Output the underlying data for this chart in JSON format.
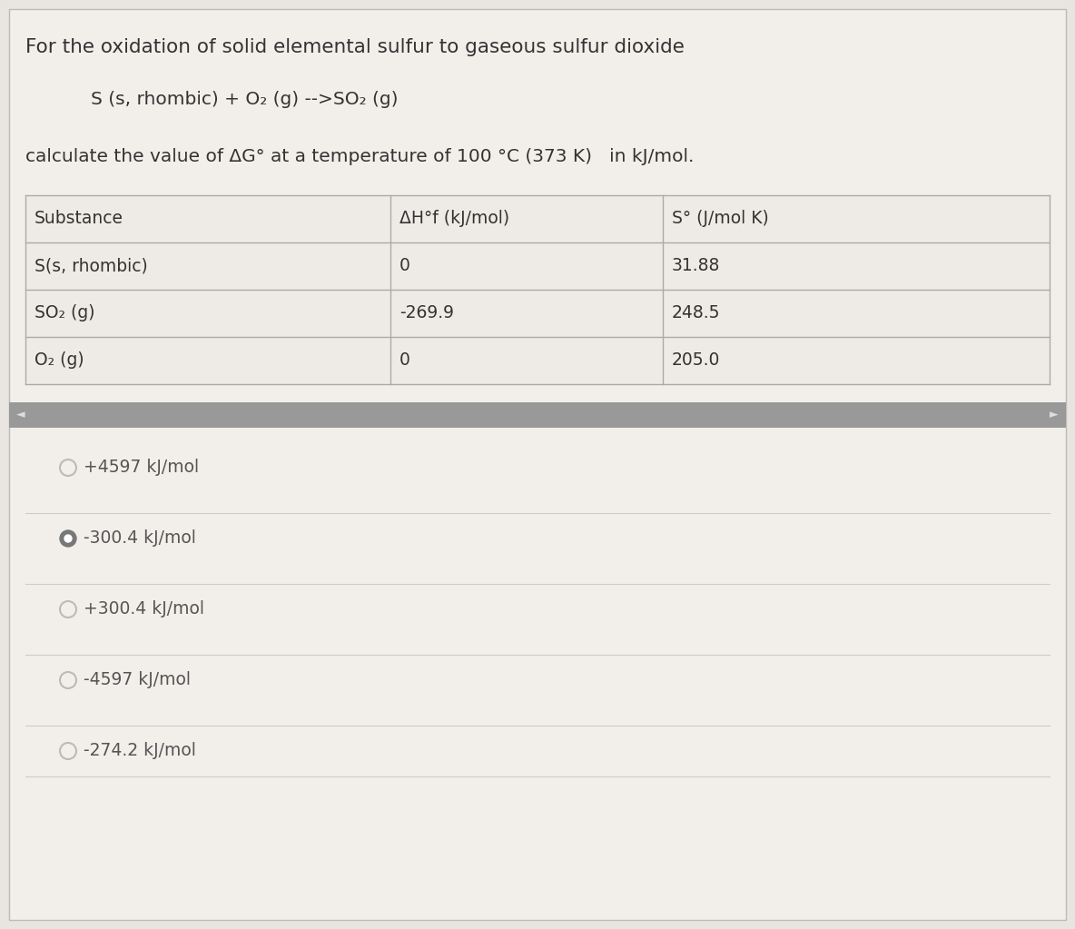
{
  "title_line1": "For the oxidation of solid elemental sulfur to gaseous sulfur dioxide",
  "equation": "S (s, rhombic) + O₂ (g) -->SO₂ (g)",
  "question": "calculate the value of ΔG° at a temperature of 100 °C (373 K)   in kJ/mol.",
  "table_header_col1": "Substance",
  "table_header_col2": "ΔH°f (kJ/mol)",
  "table_header_col3": "S° (J/mol K)",
  "table_rows": [
    [
      "S(s, rhombic)",
      "0",
      "31.88"
    ],
    [
      "SO₂ (g)",
      "-269.9",
      "248.5"
    ],
    [
      "O₂ (g)",
      "0",
      "205.0"
    ]
  ],
  "options": [
    {
      "text": "+4597 kJ/mol",
      "selected": false
    },
    {
      "text": "-300.4 kJ/mol",
      "selected": true
    },
    {
      "text": "+300.4 kJ/mol",
      "selected": false
    },
    {
      "text": "-4597 kJ/mol",
      "selected": false
    },
    {
      "text": "-274.2 kJ/mol",
      "selected": false
    }
  ],
  "bg_color": "#e8e4df",
  "content_bg": "#f2efeb",
  "table_line_color": "#aaaaaa",
  "scrollbar_color": "#999999",
  "scrollbar_bg": "#cccccc",
  "text_color": "#333333",
  "option_text_color": "#555555",
  "selected_dot_color": "#777777",
  "unselected_dot_color": "#bbbbbb",
  "sep_line_color": "#cccccc",
  "font_size_title": 15.5,
  "font_size_equation": 14.5,
  "font_size_question": 14.5,
  "font_size_table_header": 13.5,
  "font_size_table_data": 13.5,
  "font_size_options": 13.5
}
